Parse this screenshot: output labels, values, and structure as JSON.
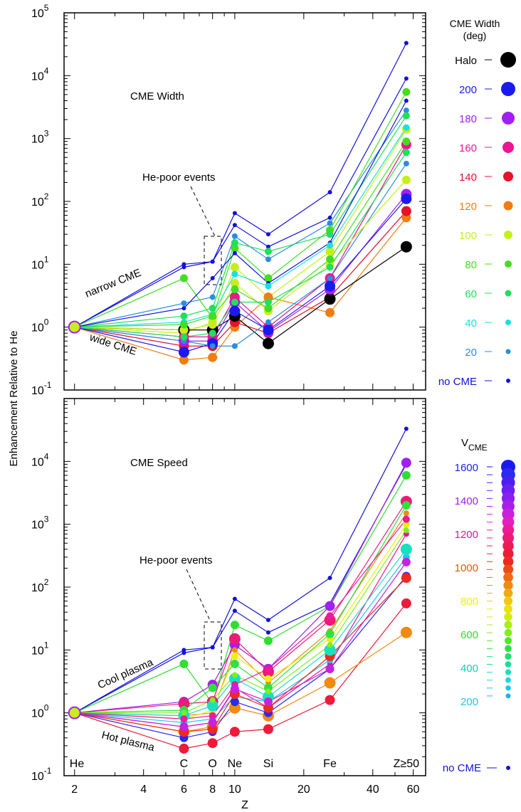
{
  "figure": {
    "ylabel": "Enhancement Relative to He",
    "xlabel": "Z",
    "x_ticks": [
      "2",
      "4",
      "6",
      "8",
      "10",
      "20",
      "40",
      "60"
    ],
    "y_ticks": [
      {
        "base": "10",
        "exp": "-1"
      },
      {
        "base": "10",
        "exp": "0"
      },
      {
        "base": "10",
        "exp": "1"
      },
      {
        "base": "10",
        "exp": "2"
      },
      {
        "base": "10",
        "exp": "3"
      },
      {
        "base": "10",
        "exp": "4"
      },
      {
        "base": "10",
        "exp": "5"
      }
    ],
    "element_labels": [
      "He",
      "C",
      "O",
      "Ne",
      "Si",
      "Fe",
      "Z≥50"
    ]
  },
  "top_panel": {
    "title": "CME Width",
    "annotation_hepoor": "He-poor events",
    "annotation_upper": "narrow CME",
    "annotation_lower": "wide CME",
    "legend_title_line1": "CME Width",
    "legend_title_line2": "(deg)",
    "legend": [
      {
        "label": "Halo",
        "color": "#000000"
      },
      {
        "label": "200",
        "color": "#1a1aee"
      },
      {
        "label": "180",
        "color": "#a020f0"
      },
      {
        "label": "160",
        "color": "#ee1493"
      },
      {
        "label": "140",
        "color": "#e8102a"
      },
      {
        "label": "120",
        "color": "#f07d12"
      },
      {
        "label": "100",
        "color": "#c8ee1a"
      },
      {
        "label": "80",
        "color": "#44dd22"
      },
      {
        "label": "60",
        "color": "#1ee05a"
      },
      {
        "label": "40",
        "color": "#18e0e0"
      },
      {
        "label": "20",
        "color": "#2a8ee0"
      },
      {
        "label": "no CME",
        "color": "#1212dd"
      }
    ]
  },
  "bottom_panel": {
    "title": "CME Speed",
    "annotation_hepoor": "He-poor events",
    "annotation_upper": "Cool plasma",
    "annotation_lower": "Hot plasma",
    "legend_title": "V",
    "legend_title_sub": "CME",
    "legend_labels": [
      {
        "label": "1600",
        "color": "#2020ee"
      },
      {
        "label": "1400",
        "color": "#a020f0"
      },
      {
        "label": "1200",
        "color": "#ee1493"
      },
      {
        "label": "1000",
        "color": "#ee5010"
      },
      {
        "label": "800",
        "color": "#eeee10"
      },
      {
        "label": "600",
        "color": "#30dd30"
      },
      {
        "label": "400",
        "color": "#10d0b0"
      },
      {
        "label": "200",
        "color": "#18c8ee"
      }
    ],
    "legend_nocme": "no CME",
    "legend_ramp": [
      "#1a1aee",
      "#2a2af0",
      "#4a20f0",
      "#6a20f0",
      "#8a20f0",
      "#a820e8",
      "#c820e0",
      "#e020c0",
      "#ee1a9a",
      "#ee1a78",
      "#ee1a58",
      "#ee1a3a",
      "#ee2a20",
      "#ee4a18",
      "#ef6a14",
      "#f08a12",
      "#f0aa12",
      "#f0ca10",
      "#eee010",
      "#d0ee10",
      "#a8ee18",
      "#80ee20",
      "#50e828",
      "#30e040",
      "#20e070",
      "#18e098",
      "#18e0c0",
      "#18d8e0",
      "#18c8ee",
      "#20b0ee"
    ]
  },
  "chart_data": [
    {
      "type": "line",
      "title": "CME Width",
      "xlabel": "Z",
      "ylabel": "Enhancement Relative to He",
      "xscale": "log",
      "yscale": "log",
      "xlim": [
        1.8,
        68
      ],
      "ylim": [
        0.1,
        100000
      ],
      "x": [
        2,
        6,
        8,
        10,
        14,
        26,
        56
      ],
      "x_labels": [
        "He",
        "C",
        "O",
        "Ne",
        "Si",
        "Fe",
        "Z≥50"
      ],
      "series": [
        {
          "color": "#1212dd",
          "values": [
            1,
            10,
            11,
            65,
            30,
            140,
            33000
          ]
        },
        {
          "color": "#1212dd",
          "values": [
            1,
            9,
            11,
            42,
            19,
            55,
            9000
          ]
        },
        {
          "color": "#2a8ee0",
          "values": [
            1,
            2.4,
            3,
            28,
            12,
            45,
            2800
          ]
        },
        {
          "color": "#44dd22",
          "values": [
            1,
            6,
            1.4,
            18,
            6,
            35,
            5500
          ]
        },
        {
          "color": "#1ee05a",
          "values": [
            1,
            1.5,
            2,
            22,
            16,
            30,
            2300
          ]
        },
        {
          "color": "#1212dd",
          "values": [
            1,
            2,
            6,
            15,
            5,
            22,
            4000
          ]
        },
        {
          "color": "#c8ee1a",
          "values": [
            1,
            0.8,
            1.2,
            9,
            3,
            16,
            1400
          ]
        },
        {
          "color": "#18e0e0",
          "values": [
            1,
            1.2,
            1.6,
            7,
            4.5,
            20,
            1500
          ]
        },
        {
          "color": "#f07d12",
          "values": [
            1,
            0.3,
            0.33,
            1,
            3,
            1.7,
            55
          ]
        },
        {
          "color": "#e8102a",
          "values": [
            1,
            0.5,
            0.5,
            1.2,
            0.8,
            3,
            70
          ]
        },
        {
          "color": "#000000",
          "values": [
            1,
            0.9,
            0.9,
            1.5,
            0.55,
            2.8,
            19
          ]
        },
        {
          "color": "#a020f0",
          "values": [
            1,
            0.6,
            0.6,
            2.5,
            0.85,
            4,
            130
          ]
        },
        {
          "color": "#ee1493",
          "values": [
            1,
            0.7,
            0.7,
            3,
            1,
            6,
            800
          ]
        },
        {
          "color": "#1a1aee",
          "values": [
            1,
            0.4,
            0.55,
            1.8,
            0.9,
            4.5,
            110
          ]
        },
        {
          "color": "#2a8ee0",
          "values": [
            1,
            0.6,
            0.5,
            0.5,
            1.2,
            6,
            400
          ]
        },
        {
          "color": "#c8ee1a",
          "values": [
            1,
            0.9,
            1.1,
            5,
            1.8,
            10,
            220
          ]
        },
        {
          "color": "#44dd22",
          "values": [
            1,
            1.1,
            1.5,
            4,
            2,
            12,
            900
          ]
        },
        {
          "color": "#1ee05a",
          "values": [
            1,
            0.7,
            0.8,
            2.5,
            2.5,
            9,
            600
          ]
        }
      ],
      "legend_title": "CME Width (deg)",
      "legend_placement": "right",
      "legend": [
        "Halo",
        "200",
        "180",
        "160",
        "140",
        "120",
        "100",
        "80",
        "60",
        "40",
        "20",
        "no CME"
      ],
      "annotations": [
        "CME Width",
        "He-poor events",
        "narrow CME",
        "wide CME"
      ]
    },
    {
      "type": "line",
      "title": "CME Speed",
      "xlabel": "Z",
      "ylabel": "Enhancement Relative to He",
      "xscale": "log",
      "yscale": "log",
      "xlim": [
        1.8,
        68
      ],
      "ylim": [
        0.1,
        100000
      ],
      "x": [
        2,
        6,
        8,
        10,
        14,
        26,
        56
      ],
      "x_labels": [
        "He",
        "C",
        "O",
        "Ne",
        "Si",
        "Fe",
        "Z≥50"
      ],
      "series": [
        {
          "color": "#1212dd",
          "values": [
            1,
            10,
            11,
            65,
            30,
            140,
            33000
          ]
        },
        {
          "color": "#1212dd",
          "values": [
            1,
            9,
            11,
            42,
            19,
            55,
            9000
          ]
        },
        {
          "color": "#30dd30",
          "values": [
            1,
            6,
            1.4,
            25,
            14,
            50,
            6000
          ]
        },
        {
          "color": "#a020f0",
          "values": [
            1,
            1.5,
            2.8,
            12,
            5,
            50,
            9500
          ]
        },
        {
          "color": "#ee1a78",
          "values": [
            1,
            1.4,
            1.5,
            15,
            4.5,
            30,
            2300
          ]
        },
        {
          "color": "#f08a12",
          "values": [
            1,
            0.9,
            1,
            10,
            3,
            20,
            1500
          ]
        },
        {
          "color": "#eeee10",
          "values": [
            1,
            0.8,
            1.1,
            8,
            3.5,
            15,
            1000
          ]
        },
        {
          "color": "#30e040",
          "values": [
            1,
            1.1,
            2.5,
            6,
            2.5,
            18,
            2000
          ]
        },
        {
          "color": "#ee1a3a",
          "values": [
            1,
            0.27,
            0.33,
            0.5,
            0.55,
            1.6,
            55
          ]
        },
        {
          "color": "#f08a12",
          "values": [
            1,
            0.5,
            0.6,
            1.2,
            0.9,
            3,
            19
          ]
        },
        {
          "color": "#ee1493",
          "values": [
            1,
            0.6,
            0.7,
            2.5,
            1.2,
            6,
            700
          ]
        },
        {
          "color": "#18c8ee",
          "values": [
            1,
            0.7,
            0.8,
            1.8,
            1.5,
            7,
            300
          ]
        },
        {
          "color": "#2a2af0",
          "values": [
            1,
            0.4,
            0.5,
            1.5,
            1,
            5,
            150
          ]
        },
        {
          "color": "#ee2a20",
          "values": [
            1,
            0.5,
            0.55,
            2,
            1.2,
            8,
            140
          ]
        },
        {
          "color": "#18e0c0",
          "values": [
            1,
            0.9,
            1.3,
            3.5,
            1.8,
            10,
            400
          ]
        },
        {
          "color": "#80ee20",
          "values": [
            1,
            1,
            1.6,
            4,
            2.2,
            12,
            800
          ]
        },
        {
          "color": "#ee1a9a",
          "values": [
            1,
            0.8,
            0.9,
            2.8,
            5,
            35,
            1200
          ]
        },
        {
          "color": "#c820e0",
          "values": [
            1,
            0.6,
            0.7,
            2.4,
            1.5,
            5,
            250
          ]
        }
      ],
      "legend_title": "V_CME",
      "legend_placement": "right",
      "legend": [
        "1600",
        "1400",
        "1200",
        "1000",
        "800",
        "600",
        "400",
        "200",
        "no CME"
      ],
      "annotations": [
        "CME Speed",
        "He-poor events",
        "Cool plasma",
        "Hot plasma"
      ]
    }
  ]
}
